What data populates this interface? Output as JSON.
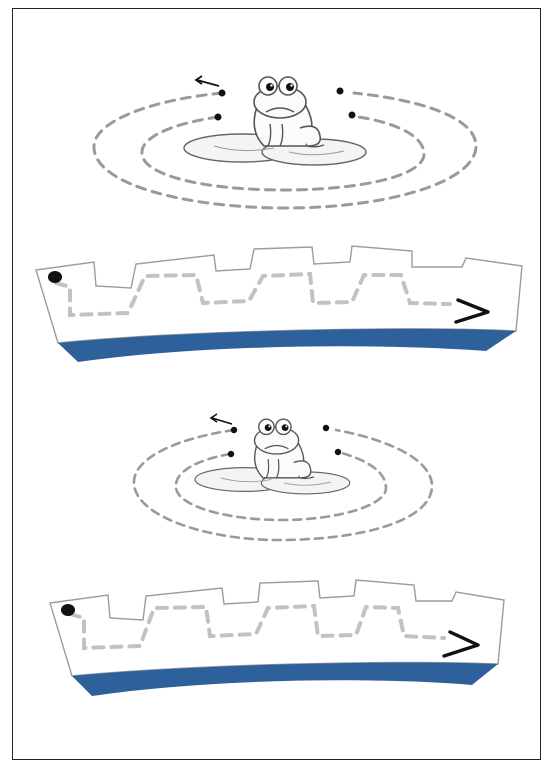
{
  "worksheet": {
    "kind": "pre-writing tracing worksheet",
    "blocks": [
      {
        "frog_spiral": {
          "start_arrow": "←",
          "icon": "frog-on-lily-pad-icon"
        },
        "castle_wall": {
          "start_dot": "start-dot-icon",
          "end_arrow": "›"
        }
      },
      {
        "frog_spiral": {
          "start_arrow": "←",
          "icon": "frog-on-lily-pad-icon"
        },
        "castle_wall": {
          "start_dot": "start-dot-icon",
          "end_arrow": "›"
        }
      }
    ]
  },
  "colors": {
    "border": "#222222",
    "trace": "#9a9a9a",
    "trace_light": "#c2c2c2",
    "wall_outline": "#9c9c9c",
    "water": "#2e609c",
    "frog_outline": "#555555",
    "ink": "#111111"
  }
}
